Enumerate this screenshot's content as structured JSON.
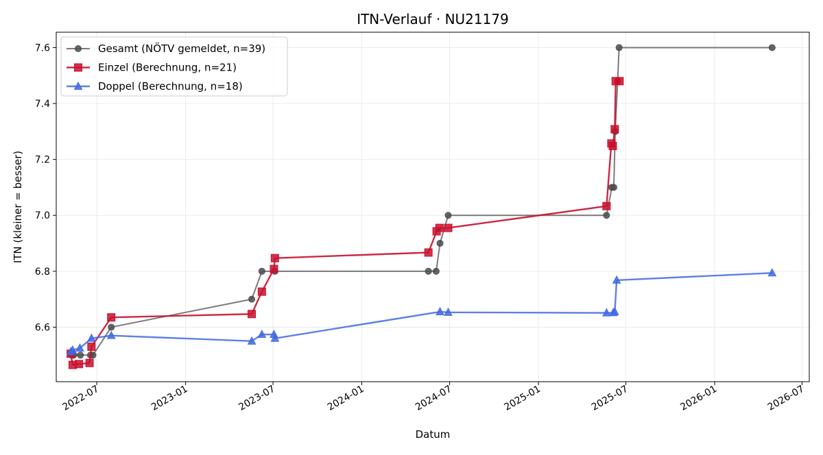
{
  "chart_data": {
    "type": "line",
    "title": "ITN-Verlauf · NU21179",
    "xlabel": "Datum",
    "ylabel": "ITN  (kleiner = besser)",
    "x_axis_kind": "date",
    "xlim": [
      "2022-04-08",
      "2026-07-16"
    ],
    "ylim": [
      6.405,
      7.655
    ],
    "x_ticks": [
      "2022-07-01",
      "2023-01-01",
      "2023-07-01",
      "2024-01-01",
      "2024-07-01",
      "2025-01-01",
      "2025-07-01",
      "2026-01-01",
      "2026-07-01"
    ],
    "x_tick_labels": [
      "2022-07",
      "2023-01",
      "2023-07",
      "2024-01",
      "2024-07",
      "2025-01",
      "2025-07",
      "2026-01",
      "2026-07"
    ],
    "y_ticks": [
      6.6,
      6.8,
      7.0,
      7.2,
      7.4,
      7.6
    ],
    "y_tick_labels": [
      "6.6",
      "6.8",
      "7.0",
      "7.2",
      "7.4",
      "7.6"
    ],
    "grid": true,
    "legend_position": "top-left",
    "series": [
      {
        "name": "Gesamt (NÖTV gemeldet, n=39)",
        "color": "#4d4d4d",
        "marker": "circle",
        "points": [
          [
            "2022-05-10",
            6.5
          ],
          [
            "2022-05-14",
            6.5
          ],
          [
            "2022-05-28",
            6.5
          ],
          [
            "2022-06-18",
            6.5
          ],
          [
            "2022-06-23",
            6.5
          ],
          [
            "2022-07-31",
            6.6
          ],
          [
            "2023-05-18",
            6.7
          ],
          [
            "2023-06-08",
            6.8
          ],
          [
            "2023-07-05",
            6.8
          ],
          [
            "2024-05-18",
            6.8
          ],
          [
            "2024-06-03",
            6.8
          ],
          [
            "2024-06-11",
            6.9
          ],
          [
            "2024-06-28",
            7.0
          ],
          [
            "2025-05-22",
            7.0
          ],
          [
            "2025-06-02",
            7.1
          ],
          [
            "2025-06-06",
            7.1
          ],
          [
            "2025-06-09",
            7.3
          ],
          [
            "2025-06-14",
            7.48
          ],
          [
            "2025-06-17",
            7.6
          ],
          [
            "2026-04-30",
            7.6
          ]
        ]
      },
      {
        "name": "Einzel (Berechnung, n=21)",
        "color": "#c8102e",
        "marker": "square",
        "points": [
          [
            "2022-05-08",
            6.505
          ],
          [
            "2022-05-12",
            6.465
          ],
          [
            "2022-05-25",
            6.468
          ],
          [
            "2022-06-16",
            6.472
          ],
          [
            "2022-06-20",
            6.53
          ],
          [
            "2022-07-31",
            6.635
          ],
          [
            "2023-05-18",
            6.647
          ],
          [
            "2023-06-08",
            6.727
          ],
          [
            "2023-07-03",
            6.808
          ],
          [
            "2023-07-05",
            6.847
          ],
          [
            "2024-05-18",
            6.867
          ],
          [
            "2024-06-04",
            6.943
          ],
          [
            "2024-06-10",
            6.955
          ],
          [
            "2024-06-28",
            6.955
          ],
          [
            "2025-05-22",
            7.033
          ],
          [
            "2025-06-01",
            7.257
          ],
          [
            "2025-06-04",
            7.248
          ],
          [
            "2025-06-08",
            7.308
          ],
          [
            "2025-06-10",
            7.48
          ],
          [
            "2025-06-18",
            7.48
          ]
        ]
      },
      {
        "name": "Doppel (Berechnung, n=18)",
        "color": "#4169e1",
        "marker": "triangle",
        "points": [
          [
            "2022-05-08",
            6.512
          ],
          [
            "2022-05-12",
            6.518
          ],
          [
            "2022-05-27",
            6.525
          ],
          [
            "2022-06-20",
            6.56
          ],
          [
            "2022-07-31",
            6.57
          ],
          [
            "2023-05-18",
            6.55
          ],
          [
            "2023-06-08",
            6.574
          ],
          [
            "2023-07-03",
            6.574
          ],
          [
            "2023-07-05",
            6.56
          ],
          [
            "2024-06-11",
            6.655
          ],
          [
            "2024-06-28",
            6.653
          ],
          [
            "2025-05-22",
            6.651
          ],
          [
            "2025-06-05",
            6.652
          ],
          [
            "2025-06-08",
            6.655
          ],
          [
            "2025-06-12",
            6.768
          ],
          [
            "2026-04-30",
            6.794
          ]
        ]
      }
    ]
  }
}
